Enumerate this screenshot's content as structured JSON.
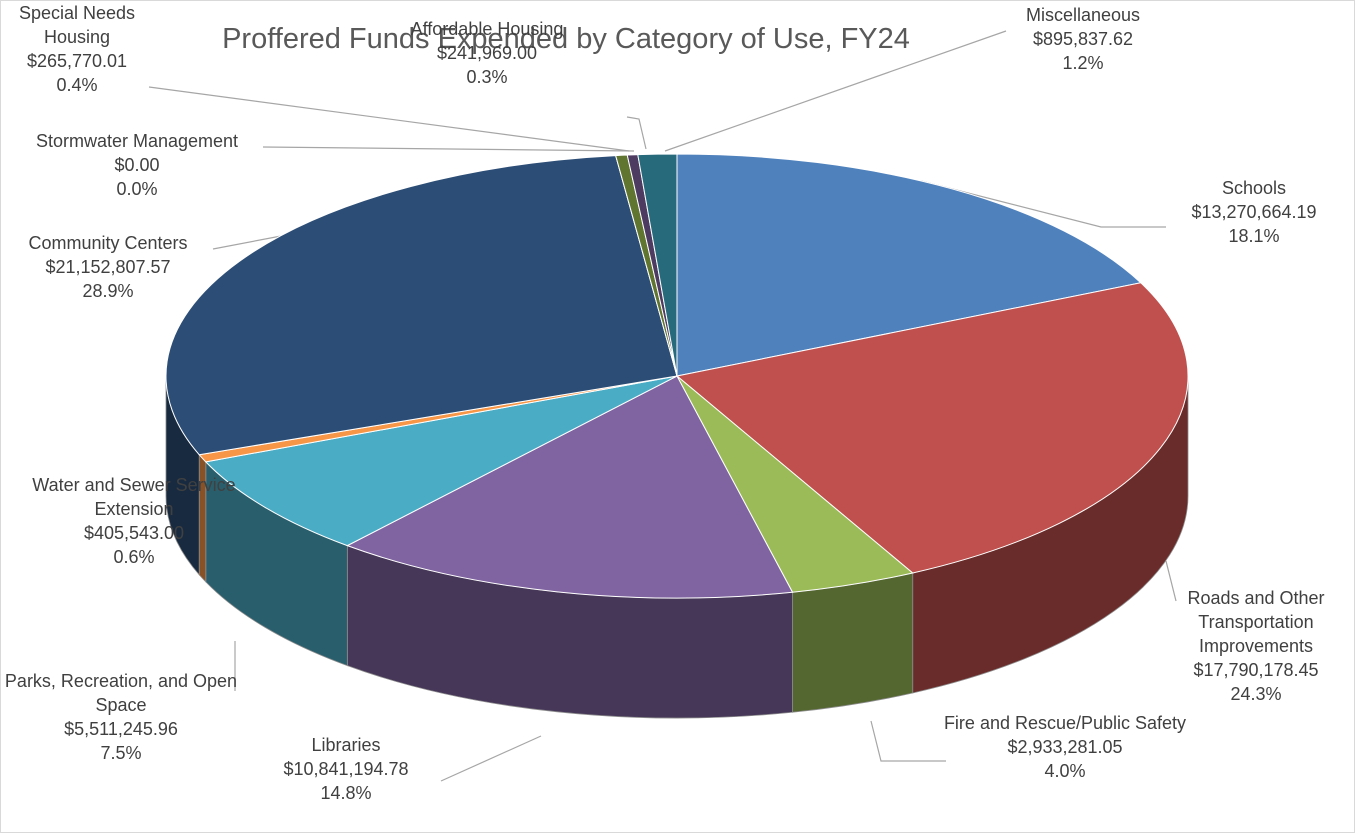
{
  "chart_data": {
    "type": "pie3d",
    "title": "Proffered Funds Expended by Category of Use, FY24",
    "categories": [
      "Schools",
      "Roads and Other Transportation Improvements",
      "Fire and Rescue/Public Safety",
      "Libraries",
      "Parks, Recreation, and Open Space",
      "Water and Sewer Service Extension",
      "Community Centers",
      "Stormwater Management",
      "Special Needs Housing",
      "Affordable Housing",
      "Miscellaneous"
    ],
    "values": [
      13270664.19,
      17790178.45,
      2933281.05,
      10841194.78,
      5511245.96,
      405543.0,
      21152807.57,
      0.0,
      265770.01,
      241969.0,
      895837.62
    ],
    "value_labels": [
      "$13,270,664.19",
      "$17,790,178.45",
      "$2,933,281.05",
      "$10,841,194.78",
      "$5,511,245.96",
      "$405,543.00",
      "$21,152,807.57",
      "$0.00",
      "$265,770.01",
      "$241,969.00",
      "$895,837.62"
    ],
    "percent_labels": [
      "18.1%",
      "24.3%",
      "4.0%",
      "14.8%",
      "7.5%",
      "0.6%",
      "28.9%",
      "0.0%",
      "0.4%",
      "0.3%",
      "1.2%"
    ],
    "colors": [
      "#4f81bd",
      "#c0504d",
      "#9bbb59",
      "#8064a2",
      "#4bacc6",
      "#f79646",
      "#2c4d75",
      "#772c2a",
      "#5f7530",
      "#4d3b62",
      "#276a7c"
    ]
  }
}
